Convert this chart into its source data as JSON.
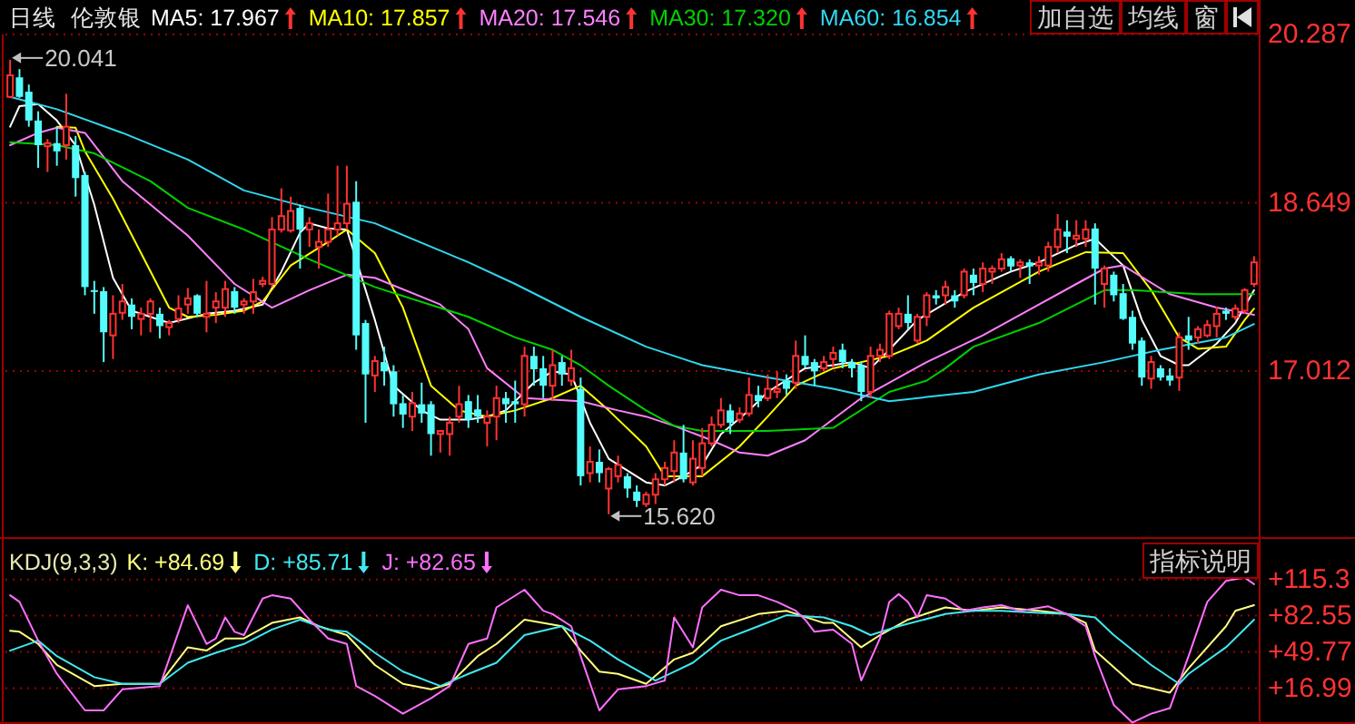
{
  "chart_data": [
    {
      "type": "candlestick",
      "title": "伦敦银",
      "subtitle": "日线",
      "legend": "top left",
      "grid": "y",
      "categories": [
        null,
        null,
        null,
        null,
        null,
        null,
        null,
        null,
        null,
        null,
        null,
        null,
        null,
        null,
        null,
        null,
        null,
        null,
        null,
        null,
        null,
        null,
        null,
        null,
        null,
        null,
        null,
        null,
        null,
        null,
        null,
        null,
        null,
        null,
        null,
        null,
        null,
        null,
        null,
        null,
        null,
        null,
        null,
        null,
        null,
        null,
        null,
        null,
        null,
        null,
        null,
        null,
        null,
        null,
        null,
        null,
        null,
        null,
        null,
        null,
        null,
        null,
        null,
        null,
        null,
        null,
        null,
        null,
        null,
        null,
        null,
        null,
        null,
        null,
        null,
        null,
        null,
        null,
        null,
        null,
        null,
        null,
        null,
        null,
        null,
        null,
        null,
        null,
        null,
        null,
        null,
        null,
        null,
        null,
        null,
        null,
        null,
        null,
        null,
        null,
        null,
        null,
        null,
        null,
        null,
        null,
        null,
        null,
        null,
        null,
        null,
        null,
        null,
        null,
        null,
        null,
        null,
        null,
        null,
        null,
        null,
        null,
        null,
        null,
        null,
        null,
        null,
        null,
        null,
        null,
        null,
        null,
        null,
        null
      ],
      "ohlc": [
        [
          19.68,
          20.041,
          19.68,
          19.89
        ],
        [
          19.87,
          19.95,
          19.67,
          19.68
        ],
        [
          19.73,
          19.8,
          19.39,
          19.45
        ],
        [
          19.45,
          19.54,
          18.99,
          19.21
        ],
        [
          19.2,
          19.27,
          18.95,
          19.23
        ],
        [
          19.23,
          19.39,
          19.01,
          19.15
        ],
        [
          19.21,
          19.71,
          19.07,
          19.39
        ],
        [
          19.21,
          19.3,
          18.71,
          18.89
        ],
        [
          18.92,
          18.95,
          17.75,
          17.83
        ],
        [
          17.8,
          17.89,
          17.57,
          17.79
        ],
        [
          17.79,
          17.83,
          17.1,
          17.39
        ],
        [
          17.36,
          17.75,
          17.13,
          17.57
        ],
        [
          17.58,
          17.86,
          17.51,
          17.69
        ],
        [
          17.66,
          17.72,
          17.42,
          17.54
        ],
        [
          17.52,
          17.63,
          17.36,
          17.57
        ],
        [
          17.57,
          17.72,
          17.39,
          17.69
        ],
        [
          17.57,
          17.63,
          17.33,
          17.45
        ],
        [
          17.44,
          17.51,
          17.36,
          17.48
        ],
        [
          17.52,
          17.75,
          17.48,
          17.62
        ],
        [
          17.66,
          17.82,
          17.57,
          17.72
        ],
        [
          17.75,
          17.76,
          17.54,
          17.57
        ],
        [
          17.54,
          17.89,
          17.39,
          17.57
        ],
        [
          17.63,
          17.78,
          17.48,
          17.69
        ],
        [
          17.63,
          17.89,
          17.54,
          17.81
        ],
        [
          17.79,
          17.83,
          17.57,
          17.63
        ],
        [
          17.66,
          17.72,
          17.57,
          17.69
        ],
        [
          17.69,
          17.91,
          17.57,
          17.78
        ],
        [
          17.86,
          17.93,
          17.83,
          17.89
        ],
        [
          17.86,
          18.51,
          17.83,
          18.39
        ],
        [
          18.39,
          18.79,
          18.36,
          18.52
        ],
        [
          18.38,
          18.71,
          18.36,
          18.57
        ],
        [
          18.6,
          18.63,
          18.01,
          18.39
        ],
        [
          18.39,
          18.51,
          18.22,
          18.45
        ],
        [
          18.22,
          18.39,
          18.01,
          18.27
        ],
        [
          18.27,
          18.74,
          18.22,
          18.39
        ],
        [
          18.39,
          19.01,
          18.33,
          18.45
        ],
        [
          18.45,
          19.01,
          18.39,
          18.64
        ],
        [
          18.66,
          18.86,
          17.22,
          17.36
        ],
        [
          17.48,
          17.51,
          16.51,
          16.98
        ],
        [
          16.97,
          17.16,
          16.81,
          17.11
        ],
        [
          17.1,
          17.25,
          16.87,
          17.01
        ],
        [
          17.01,
          17.07,
          16.57,
          16.69
        ],
        [
          16.7,
          16.78,
          16.46,
          16.59
        ],
        [
          16.57,
          16.81,
          16.43,
          16.7
        ],
        [
          16.69,
          16.9,
          16.51,
          16.6
        ],
        [
          16.69,
          16.72,
          16.19,
          16.4
        ],
        [
          16.4,
          16.44,
          16.22,
          16.43
        ],
        [
          16.4,
          16.57,
          16.19,
          16.51
        ],
        [
          16.57,
          16.87,
          16.51,
          16.69
        ],
        [
          16.72,
          16.78,
          16.46,
          16.54
        ],
        [
          16.64,
          16.78,
          16.51,
          16.57
        ],
        [
          16.51,
          16.63,
          16.28,
          16.57
        ],
        [
          16.57,
          16.87,
          16.34,
          16.75
        ],
        [
          16.75,
          16.81,
          16.51,
          16.69
        ],
        [
          16.72,
          16.92,
          16.51,
          16.69
        ],
        [
          16.69,
          17.25,
          16.57,
          17.16
        ],
        [
          17.16,
          17.25,
          16.87,
          17.03
        ],
        [
          17.04,
          17.16,
          16.75,
          16.87
        ],
        [
          16.87,
          17.22,
          16.72,
          17.07
        ],
        [
          17.1,
          17.16,
          16.87,
          16.98
        ],
        [
          16.92,
          17.22,
          16.87,
          17.04
        ],
        [
          16.84,
          16.95,
          15.9,
          15.99
        ],
        [
          16.02,
          16.28,
          15.93,
          16.13
        ],
        [
          16.13,
          16.25,
          15.93,
          16.02
        ],
        [
          15.87,
          16.08,
          15.62,
          16.06
        ],
        [
          15.99,
          16.19,
          15.93,
          16.1
        ],
        [
          15.99,
          16.02,
          15.78,
          15.87
        ],
        [
          15.84,
          15.9,
          15.69,
          15.75
        ],
        [
          15.72,
          15.84,
          15.69,
          15.81
        ],
        [
          15.81,
          16.02,
          15.72,
          15.96
        ],
        [
          15.96,
          16.13,
          15.9,
          16.07
        ],
        [
          16.04,
          16.34,
          15.93,
          16.22
        ],
        [
          16.22,
          16.49,
          15.93,
          15.96
        ],
        [
          15.93,
          16.34,
          15.9,
          16.16
        ],
        [
          16.07,
          16.46,
          15.99,
          16.31
        ],
        [
          16.31,
          16.57,
          16.28,
          16.49
        ],
        [
          16.49,
          16.75,
          16.46,
          16.63
        ],
        [
          16.63,
          16.69,
          16.4,
          16.51
        ],
        [
          16.54,
          16.66,
          16.51,
          16.6
        ],
        [
          16.6,
          16.95,
          16.57,
          16.78
        ],
        [
          16.78,
          16.87,
          16.66,
          16.72
        ],
        [
          16.75,
          16.98,
          16.72,
          16.84
        ],
        [
          16.81,
          17.01,
          16.75,
          16.84
        ],
        [
          16.92,
          16.98,
          16.78,
          16.84
        ],
        [
          16.9,
          17.31,
          16.84,
          17.16
        ],
        [
          17.16,
          17.36,
          17.04,
          17.07
        ],
        [
          17.1,
          17.13,
          16.87,
          17.01
        ],
        [
          17.04,
          17.16,
          17.01,
          17.1
        ],
        [
          17.13,
          17.25,
          17.04,
          17.19
        ],
        [
          17.22,
          17.28,
          17.04,
          17.1
        ],
        [
          17.1,
          17.13,
          16.95,
          17.04
        ],
        [
          17.07,
          17.1,
          16.72,
          16.81
        ],
        [
          16.81,
          17.25,
          16.75,
          17.16
        ],
        [
          17.16,
          17.28,
          17.1,
          17.22
        ],
        [
          17.16,
          17.6,
          17.13,
          17.57
        ],
        [
          17.45,
          17.63,
          17.42,
          17.57
        ],
        [
          17.57,
          17.75,
          17.42,
          17.48
        ],
        [
          17.31,
          17.57,
          17.28,
          17.54
        ],
        [
          17.54,
          17.78,
          17.45,
          17.75
        ],
        [
          17.75,
          17.8,
          17.66,
          17.72
        ],
        [
          17.75,
          17.89,
          17.66,
          17.83
        ],
        [
          17.75,
          17.8,
          17.63,
          17.69
        ],
        [
          17.75,
          18.01,
          17.72,
          17.98
        ],
        [
          17.95,
          18.01,
          17.75,
          17.87
        ],
        [
          17.86,
          18.07,
          17.78,
          18.01
        ],
        [
          17.98,
          18.04,
          17.86,
          18.01
        ],
        [
          18.01,
          18.16,
          17.98,
          18.1
        ],
        [
          18.11,
          18.13,
          17.98,
          18.03
        ],
        [
          18.04,
          18.1,
          17.92,
          18.07
        ],
        [
          18.07,
          18.1,
          17.86,
          18.03
        ],
        [
          18.04,
          18.13,
          17.95,
          18.07
        ],
        [
          18.04,
          18.27,
          17.98,
          18.22
        ],
        [
          18.22,
          18.54,
          18.16,
          18.39
        ],
        [
          18.37,
          18.48,
          18.16,
          18.32
        ],
        [
          18.3,
          18.48,
          18.22,
          18.33
        ],
        [
          18.3,
          18.48,
          18.22,
          18.39
        ],
        [
          18.4,
          18.45,
          17.66,
          18.01
        ],
        [
          17.86,
          18.04,
          17.63,
          18.01
        ],
        [
          17.95,
          17.98,
          17.69,
          17.75
        ],
        [
          17.77,
          17.86,
          17.51,
          17.52
        ],
        [
          17.54,
          17.6,
          17.22,
          17.28
        ],
        [
          17.31,
          17.34,
          16.87,
          16.95
        ],
        [
          16.94,
          17.16,
          16.84,
          17.1
        ],
        [
          17.04,
          17.07,
          16.92,
          16.95
        ],
        [
          16.97,
          17.04,
          16.87,
          16.92
        ],
        [
          16.95,
          17.39,
          16.82,
          17.34
        ],
        [
          17.36,
          17.54,
          17.22,
          17.31
        ],
        [
          17.34,
          17.45,
          17.28,
          17.42
        ],
        [
          17.36,
          17.51,
          17.34,
          17.46
        ],
        [
          17.45,
          17.64,
          17.34,
          17.57
        ],
        [
          17.6,
          17.63,
          17.51,
          17.57
        ],
        [
          17.54,
          17.66,
          17.51,
          17.62
        ],
        [
          17.6,
          17.82,
          17.57,
          17.8
        ],
        [
          17.86,
          18.13,
          17.83,
          18.07
        ]
      ],
      "series": [
        {
          "name": "MA5: 17.967",
          "type": "line",
          "color": "#ffffff",
          "values": [
            19.39,
            19.59,
            null,
            19.61,
            null,
            19.45,
            null,
            19.21,
            null,
            18.63,
            null,
            17.92,
            null,
            17.6,
            null,
            17.54,
            null,
            17.48,
            null,
            null,
            null,
            17.57,
            null,
            null,
            17.6,
            null,
            null,
            17.66,
            null,
            17.98,
            null,
            18.36,
            18.45,
            null,
            18.4,
            null,
            18.39,
            null,
            null,
            17.51,
            null,
            16.87,
            null,
            null,
            16.63,
            null,
            16.54,
            null,
            null,
            16.54,
            null,
            16.57,
            null,
            16.63,
            null,
            null,
            16.9,
            null,
            17.01,
            null,
            16.98,
            null,
            16.51,
            null,
            16.16,
            null,
            null,
            null,
            15.93,
            null,
            15.9,
            null,
            15.99,
            null,
            16.1,
            null,
            16.4,
            null,
            null,
            16.63,
            null,
            16.81,
            null,
            null,
            null,
            17.04,
            null,
            null,
            17.07,
            null,
            17.1,
            null,
            17.04,
            null,
            17.22,
            null,
            null,
            17.51,
            null,
            null,
            null,
            null,
            17.78,
            null,
            null,
            null,
            null,
            17.98,
            null,
            null,
            18.07,
            null,
            null,
            null,
            18.24,
            null,
            18.3,
            null,
            null,
            18.04,
            null,
            17.51,
            null,
            17.16,
            null,
            17.07,
            17.07,
            null,
            null,
            17.28,
            null,
            17.48,
            null,
            17.8
          ]
        },
        {
          "name": "MA10: 17.857",
          "type": "line",
          "color": "#ffff00",
          "values": [
            null,
            null,
            null,
            null,
            null,
            19.39,
            null,
            19.38,
            19.15,
            null,
            null,
            18.69,
            null,
            null,
            18.16,
            null,
            null,
            17.63,
            null,
            17.54,
            null,
            null,
            17.56,
            null,
            null,
            17.6,
            null,
            17.69,
            null,
            null,
            18.04,
            null,
            null,
            null,
            18.27,
            null,
            18.39,
            null,
            null,
            18.16,
            null,
            null,
            17.63,
            null,
            null,
            16.87,
            null,
            null,
            16.63,
            null,
            null,
            16.57,
            null,
            null,
            16.63,
            null,
            null,
            null,
            16.75,
            null,
            null,
            16.87,
            null,
            null,
            16.63,
            null,
            null,
            null,
            16.28,
            null,
            15.99,
            null,
            null,
            null,
            15.99,
            null,
            null,
            null,
            16.28,
            null,
            null,
            16.57,
            null,
            null,
            16.87,
            null,
            null,
            null,
            17.04,
            null,
            null,
            17.1,
            null,
            null,
            17.16,
            null,
            null,
            null,
            17.31,
            null,
            null,
            null,
            null,
            17.63,
            null,
            null,
            null,
            null,
            null,
            null,
            17.98,
            null,
            null,
            null,
            null,
            18.17,
            null,
            null,
            null,
            18.16,
            null,
            null,
            17.8,
            null,
            null,
            17.34,
            null,
            17.23,
            null,
            null,
            17.25,
            null,
            17.51,
            17.62
          ]
        },
        {
          "name": "MA20: 17.546",
          "type": "line",
          "color": "#ff80ff",
          "values": [
            19.21,
            null,
            null,
            19.33,
            null,
            19.38,
            null,
            null,
            19.33,
            null,
            null,
            null,
            18.86,
            null,
            null,
            null,
            null,
            null,
            null,
            18.33,
            null,
            null,
            null,
            null,
            17.86,
            null,
            null,
            null,
            17.63,
            null,
            null,
            null,
            17.8,
            null,
            null,
            null,
            17.95,
            null,
            null,
            17.92,
            null,
            null,
            null,
            null,
            null,
            null,
            17.66,
            null,
            null,
            17.42,
            null,
            17.04,
            null,
            null,
            null,
            16.75,
            null,
            null,
            null,
            null,
            null,
            16.72,
            null,
            null,
            null,
            16.63,
            null,
            null,
            16.57,
            null,
            null,
            16.48,
            null,
            null,
            null,
            16.34,
            null,
            null,
            16.22,
            null,
            null,
            16.19,
            null,
            null,
            null,
            16.34,
            null,
            null,
            null,
            null,
            null,
            16.75,
            null,
            null,
            null,
            null,
            null,
            null,
            17.1,
            null,
            null,
            null,
            null,
            null,
            17.36,
            null,
            null,
            null,
            null,
            null,
            17.66,
            null,
            null,
            null,
            17.86,
            null,
            null,
            18.01,
            null,
            18.04,
            null,
            null,
            null,
            null,
            17.76,
            null,
            null,
            null,
            null,
            17.63,
            null,
            null,
            null,
            17.56
          ]
        },
        {
          "name": "MA30: 17.320",
          "type": "line",
          "color": "#00d000",
          "values": [
            19.24,
            null,
            null,
            null,
            null,
            19.21,
            null,
            null,
            null,
            19.13,
            null,
            null,
            null,
            null,
            null,
            18.86,
            null,
            null,
            null,
            18.6,
            null,
            null,
            null,
            null,
            null,
            18.39,
            null,
            null,
            null,
            null,
            null,
            null,
            18.1,
            null,
            null,
            null,
            null,
            null,
            null,
            17.83,
            null,
            null,
            null,
            null,
            null,
            null,
            null,
            null,
            null,
            17.54,
            null,
            null,
            null,
            null,
            17.34,
            null,
            null,
            null,
            17.22,
            null,
            null,
            17.07,
            null,
            null,
            16.87,
            null,
            null,
            null,
            16.63,
            null,
            null,
            16.48,
            null,
            null,
            16.43,
            null,
            null,
            null,
            null,
            null,
            null,
            16.43,
            null,
            null,
            null,
            null,
            null,
            null,
            16.46,
            null,
            null,
            null,
            null,
            null,
            16.81,
            null,
            null,
            null,
            16.92,
            null,
            17.04,
            null,
            null,
            17.25,
            null,
            null,
            null,
            null,
            null,
            null,
            17.48,
            null,
            null,
            null,
            null,
            null,
            null,
            17.8,
            null,
            null,
            17.8,
            null,
            null,
            null,
            null,
            null,
            null,
            17.76,
            null,
            null,
            null,
            null,
            null,
            17.76
          ]
        },
        {
          "name": "MA60: 16.854",
          "type": "line",
          "color": "#30d8f0",
          "values": [
            19.68,
            null,
            null,
            null,
            null,
            19.56,
            null,
            null,
            null,
            null,
            null,
            null,
            19.33,
            null,
            null,
            null,
            null,
            null,
            null,
            19.07,
            null,
            null,
            null,
            null,
            null,
            18.77,
            null,
            null,
            null,
            null,
            null,
            null,
            18.6,
            null,
            null,
            null,
            null,
            null,
            null,
            18.45,
            null,
            null,
            null,
            null,
            null,
            null,
            null,
            null,
            null,
            18.07,
            null,
            null,
            null,
            null,
            17.86,
            null,
            null,
            null,
            null,
            null,
            null,
            17.54,
            null,
            null,
            null,
            null,
            null,
            null,
            17.25,
            null,
            null,
            null,
            null,
            null,
            17.07,
            null,
            null,
            null,
            null,
            null,
            null,
            16.95,
            null,
            null,
            null,
            null,
            null,
            null,
            16.84,
            null,
            null,
            null,
            null,
            null,
            16.72,
            null,
            null,
            null,
            null,
            null,
            null,
            null,
            null,
            16.81,
            null,
            null,
            null,
            null,
            null,
            null,
            16.98,
            null,
            null,
            null,
            null,
            null,
            null,
            17.1,
            null,
            null,
            null,
            null,
            null,
            17.22,
            null,
            null,
            null,
            null,
            null,
            null,
            17.34,
            null,
            null,
            17.47
          ]
        }
      ],
      "ylim": [
        15.38,
        20.287
      ],
      "yticks": [
        20.287,
        18.649,
        17.012
      ],
      "annotations": [
        "20.041",
        "15.620",
        "加自选",
        "均线",
        "窗"
      ]
    },
    {
      "type": "line",
      "title": "KDJ(9,3,3)",
      "legend": "top left",
      "grid": "y",
      "categories": [
        null,
        null,
        null,
        null,
        null,
        null,
        null,
        null,
        null,
        null,
        null,
        null,
        null,
        null,
        null,
        null,
        null,
        null,
        null,
        null,
        null,
        null,
        null,
        null,
        null,
        null,
        null,
        null,
        null,
        null,
        null,
        null,
        null,
        null,
        null,
        null,
        null,
        null,
        null,
        null,
        null,
        null,
        null,
        null,
        null,
        null,
        null,
        null,
        null,
        null,
        null,
        null,
        null,
        null,
        null,
        null,
        null,
        null,
        null,
        null,
        null,
        null,
        null,
        null,
        null,
        null,
        null,
        null,
        null,
        null,
        null,
        null,
        null,
        null,
        null,
        null,
        null,
        null,
        null,
        null,
        null,
        null,
        null,
        null,
        null,
        null,
        null,
        null,
        null,
        null,
        null,
        null,
        null,
        null,
        null,
        null,
        null,
        null,
        null,
        null,
        null,
        null,
        null,
        null,
        null,
        null,
        null,
        null,
        null,
        null,
        null,
        null,
        null,
        null,
        null,
        null,
        null,
        null,
        null,
        null,
        null,
        null,
        null,
        null,
        null,
        null,
        null,
        null,
        null,
        null,
        null,
        null,
        null,
        null
      ],
      "series": [
        {
          "name": "K: +84.69",
          "color": "#ffff80",
          "values": [
            69,
            68,
            null,
            57,
            null,
            38,
            null,
            null,
            null,
            19,
            null,
            null,
            21,
            null,
            null,
            null,
            21,
            null,
            null,
            54,
            null,
            51,
            null,
            62,
            null,
            62,
            null,
            null,
            76,
            null,
            null,
            81,
            null,
            73,
            null,
            null,
            65,
            null,
            null,
            38,
            null,
            null,
            21,
            null,
            null,
            16,
            null,
            21,
            null,
            null,
            46,
            null,
            57,
            null,
            null,
            79,
            null,
            null,
            null,
            73,
            null,
            51,
            null,
            32,
            null,
            30,
            null,
            null,
            21,
            null,
            null,
            43,
            null,
            49,
            null,
            null,
            73,
            null,
            null,
            null,
            84,
            null,
            null,
            87,
            null,
            null,
            null,
            76,
            76,
            null,
            null,
            54,
            null,
            65,
            null,
            null,
            79,
            null,
            null,
            null,
            90,
            null,
            null,
            87,
            null,
            null,
            90,
            null,
            null,
            null,
            87,
            null,
            null,
            84,
            null,
            76,
            51,
            null,
            null,
            null,
            21,
            null,
            null,
            null,
            13,
            null,
            35,
            null,
            null,
            null,
            73,
            87,
            null,
            92
          ]
        },
        {
          "name": "D: +85.71",
          "color": "#40e8f0",
          "values": [
            51,
            null,
            null,
            60,
            null,
            46,
            null,
            null,
            null,
            27,
            null,
            null,
            21,
            null,
            null,
            null,
            21,
            null,
            null,
            40,
            null,
            null,
            49,
            null,
            null,
            57,
            null,
            null,
            70,
            null,
            null,
            79,
            null,
            null,
            70,
            null,
            68,
            null,
            null,
            49,
            null,
            null,
            32,
            null,
            null,
            null,
            19,
            null,
            null,
            30,
            null,
            null,
            40,
            null,
            null,
            65,
            null,
            null,
            null,
            73,
            null,
            null,
            60,
            null,
            null,
            43,
            null,
            null,
            null,
            24,
            null,
            32,
            null,
            40,
            null,
            null,
            60,
            null,
            null,
            null,
            73,
            null,
            null,
            83,
            null,
            null,
            null,
            81,
            null,
            null,
            73,
            null,
            65,
            null,
            null,
            73,
            null,
            null,
            null,
            null,
            84,
            null,
            null,
            87,
            null,
            null,
            87,
            null,
            null,
            null,
            85,
            null,
            null,
            84,
            null,
            null,
            81,
            null,
            65,
            null,
            null,
            null,
            38,
            null,
            null,
            21,
            30,
            null,
            null,
            null,
            54,
            null,
            null,
            79
          ]
        },
        {
          "name": "J: +82.65",
          "color": "#ff70ff",
          "values": [
            101,
            95,
            null,
            60,
            null,
            30,
            null,
            null,
            -3,
            null,
            -3,
            null,
            16,
            null,
            null,
            null,
            19,
            null,
            null,
            92,
            null,
            57,
            62,
            81,
            68,
            65,
            null,
            98,
            101,
            null,
            98,
            null,
            79,
            null,
            62,
            null,
            57,
            19,
            null,
            10,
            null,
            null,
            -6,
            null,
            null,
            8,
            null,
            19,
            null,
            57,
            null,
            62,
            90,
            null,
            null,
            106,
            null,
            87,
            84,
            null,
            73,
            46,
            null,
            -3,
            null,
            16,
            null,
            null,
            19,
            null,
            24,
            81,
            null,
            54,
            90,
            null,
            106,
            null,
            101,
            null,
            101,
            null,
            95,
            null,
            87,
            79,
            68,
            null,
            70,
            null,
            57,
            24,
            null,
            62,
            95,
            102,
            95,
            81,
            101,
            null,
            98,
            null,
            87,
            null,
            90,
            null,
            92,
            null,
            87,
            null,
            null,
            91,
            null,
            84,
            null,
            73,
            46,
            null,
            2,
            null,
            -14,
            null,
            -6,
            null,
            -1,
            null,
            46,
            null,
            95,
            null,
            114,
            null,
            117,
            111
          ]
        }
      ],
      "ylim": [
        -15.3,
        151.9
      ],
      "yticks": [
        {
          "value": 115.3,
          "label": "+115.3"
        },
        {
          "value": 82.55,
          "label": "+82.55"
        },
        {
          "value": 49.77,
          "label": "+49.77"
        },
        {
          "value": 16.99,
          "label": "+16.99"
        }
      ],
      "annotations": [
        "指标说明"
      ]
    }
  ]
}
